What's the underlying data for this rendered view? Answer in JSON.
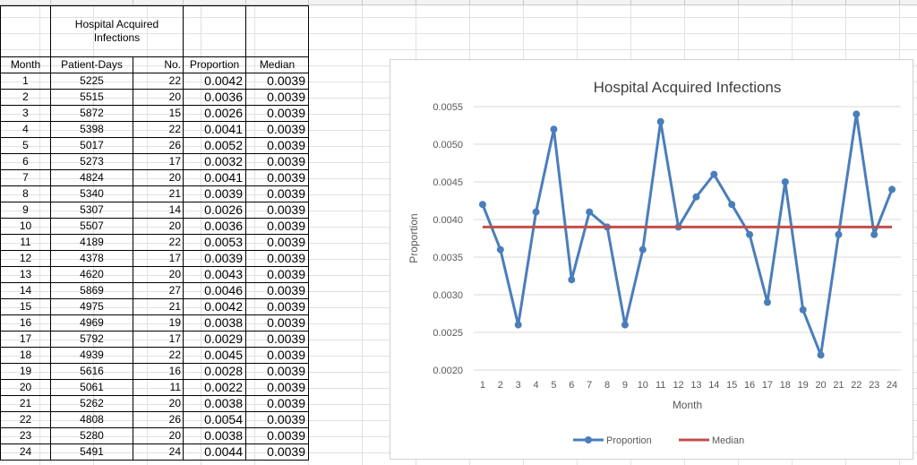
{
  "table": {
    "group_header": "Hospital Acquired Infections",
    "columns": [
      "Month",
      "Patient-Days",
      "No.",
      "Proportion",
      "Median"
    ],
    "rows": [
      [
        "1",
        "5225",
        "22",
        "0.0042",
        "0.0039"
      ],
      [
        "2",
        "5515",
        "20",
        "0.0036",
        "0.0039"
      ],
      [
        "3",
        "5872",
        "15",
        "0.0026",
        "0.0039"
      ],
      [
        "4",
        "5398",
        "22",
        "0.0041",
        "0.0039"
      ],
      [
        "5",
        "5017",
        "26",
        "0.0052",
        "0.0039"
      ],
      [
        "6",
        "5273",
        "17",
        "0.0032",
        "0.0039"
      ],
      [
        "7",
        "4824",
        "20",
        "0.0041",
        "0.0039"
      ],
      [
        "8",
        "5340",
        "21",
        "0.0039",
        "0.0039"
      ],
      [
        "9",
        "5307",
        "14",
        "0.0026",
        "0.0039"
      ],
      [
        "10",
        "5507",
        "20",
        "0.0036",
        "0.0039"
      ],
      [
        "11",
        "4189",
        "22",
        "0.0053",
        "0.0039"
      ],
      [
        "12",
        "4378",
        "17",
        "0.0039",
        "0.0039"
      ],
      [
        "13",
        "4620",
        "20",
        "0.0043",
        "0.0039"
      ],
      [
        "14",
        "5869",
        "27",
        "0.0046",
        "0.0039"
      ],
      [
        "15",
        "4975",
        "21",
        "0.0042",
        "0.0039"
      ],
      [
        "16",
        "4969",
        "19",
        "0.0038",
        "0.0039"
      ],
      [
        "17",
        "5792",
        "17",
        "0.0029",
        "0.0039"
      ],
      [
        "18",
        "4939",
        "22",
        "0.0045",
        "0.0039"
      ],
      [
        "19",
        "5616",
        "16",
        "0.0028",
        "0.0039"
      ],
      [
        "20",
        "5061",
        "11",
        "0.0022",
        "0.0039"
      ],
      [
        "21",
        "5262",
        "20",
        "0.0038",
        "0.0039"
      ],
      [
        "22",
        "4808",
        "26",
        "0.0054",
        "0.0039"
      ],
      [
        "23",
        "5280",
        "20",
        "0.0038",
        "0.0039"
      ],
      [
        "24",
        "5491",
        "24",
        "0.0044",
        "0.0039"
      ]
    ]
  },
  "chart_data": {
    "type": "line",
    "title": "Hospital Acquired Infections",
    "xlabel": "Month",
    "ylabel": "Proportion",
    "x": [
      1,
      2,
      3,
      4,
      5,
      6,
      7,
      8,
      9,
      10,
      11,
      12,
      13,
      14,
      15,
      16,
      17,
      18,
      19,
      20,
      21,
      22,
      23,
      24
    ],
    "ylim": [
      0.002,
      0.0055
    ],
    "yticks": [
      "0.0020",
      "0.0025",
      "0.0030",
      "0.0035",
      "0.0040",
      "0.0045",
      "0.0050",
      "0.0055"
    ],
    "grid": true,
    "legend_position": "bottom-right",
    "series": [
      {
        "name": "Proportion",
        "color": "#4a7ebb",
        "marker": "circle",
        "values": [
          0.0042,
          0.0036,
          0.0026,
          0.0041,
          0.0052,
          0.0032,
          0.0041,
          0.0039,
          0.0026,
          0.0036,
          0.0053,
          0.0039,
          0.0043,
          0.0046,
          0.0042,
          0.0038,
          0.0029,
          0.0045,
          0.0028,
          0.0022,
          0.0038,
          0.0054,
          0.0038,
          0.0044
        ]
      },
      {
        "name": "Median",
        "color": "#c0504d",
        "marker": "none",
        "values": [
          0.0039,
          0.0039,
          0.0039,
          0.0039,
          0.0039,
          0.0039,
          0.0039,
          0.0039,
          0.0039,
          0.0039,
          0.0039,
          0.0039,
          0.0039,
          0.0039,
          0.0039,
          0.0039,
          0.0039,
          0.0039,
          0.0039,
          0.0039,
          0.0039,
          0.0039,
          0.0039,
          0.0039
        ]
      }
    ]
  }
}
